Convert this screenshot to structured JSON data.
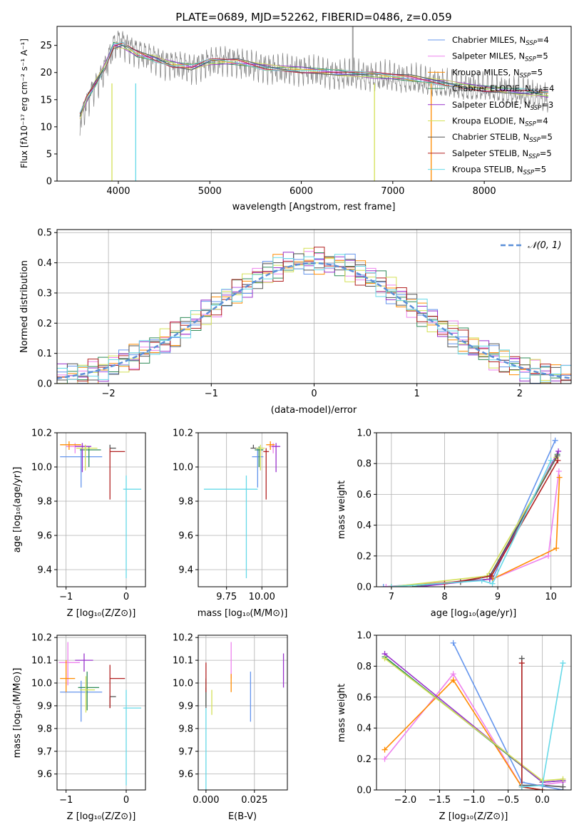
{
  "figure": {
    "title": "PLATE=0689, MJD=52262, FIBERID=0486, z=0.059"
  },
  "chart_data": [
    {
      "id": "spectrum",
      "type": "line",
      "xlabel": "wavelength [Angstrom, rest frame]",
      "ylabel": "Flux [fλ10⁻¹⁷ erg cm⁻² s⁻¹ A⁻¹]",
      "xlim": [
        3330,
        8950
      ],
      "ylim": [
        0,
        28.5
      ],
      "xticks": [
        4000,
        5000,
        6000,
        7000,
        8000
      ],
      "yticks": [
        0,
        5,
        10,
        15,
        20,
        25
      ],
      "legend_position": "top-right",
      "data_color": "#808080",
      "data_x": [
        3580,
        3650,
        3720,
        3800,
        3880,
        3950,
        4020,
        4100,
        4200,
        4350,
        4500,
        4650,
        4800,
        5000,
        5200,
        5400,
        5600,
        5800,
        6000,
        6200,
        6400,
        6600,
        6800,
        7000,
        7200,
        7400,
        7600,
        7800,
        8000,
        8200,
        8400,
        8600,
        8700
      ],
      "data_y": [
        11,
        14,
        17,
        19,
        22,
        25,
        26,
        25,
        24,
        23,
        22,
        21.5,
        21,
        22,
        22.5,
        21.5,
        21,
        20.5,
        20.5,
        20,
        19.5,
        19.5,
        19,
        19,
        18.5,
        18,
        17.5,
        17,
        17,
        16.5,
        16,
        15.5,
        15
      ],
      "series": [
        {
          "name": "Chabrier MILES, N_SSP=4",
          "color": "#6495ed"
        },
        {
          "name": "Salpeter MILES, N_SSP=5",
          "color": "#ee82ee"
        },
        {
          "name": "Kroupa MILES, N_SSP=5",
          "color": "#ff8c00"
        },
        {
          "name": "Chabrier ELODIE, N_SSP=4",
          "color": "#2e8b57"
        },
        {
          "name": "Salpeter ELODIE, N_SSP=3",
          "color": "#9932cc"
        },
        {
          "name": "Kroupa ELODIE, N_SSP=4",
          "color": "#d4e157"
        },
        {
          "name": "Chabrier STELIB, N_SSP=5",
          "color": "#555555"
        },
        {
          "name": "Salpeter STELIB, N_SSP=5",
          "color": "#b22222"
        },
        {
          "name": "Kroupa STELIB, N_SSP=5",
          "color": "#66d9e8"
        }
      ],
      "model_x": [
        3580,
        3650,
        3750,
        3850,
        3950,
        4050,
        4200,
        4400,
        4600,
        4800,
        5000,
        5300,
        5600,
        6000,
        6400,
        6800,
        7200,
        7600,
        8000,
        8400,
        8700
      ],
      "model_y": [
        12,
        15,
        18,
        21,
        25,
        25,
        23.5,
        22.5,
        21.5,
        21,
        22,
        22,
        21,
        20.5,
        20,
        19.5,
        19,
        18,
        17,
        16.5,
        16
      ]
    },
    {
      "id": "residual-histogram",
      "type": "histogram",
      "xlabel": "(data-model)/error",
      "ylabel": "Normed distribution",
      "xlim": [
        -2.5,
        2.5
      ],
      "ylim": [
        0,
        0.51
      ],
      "xticks": [
        -2,
        -1,
        0,
        1,
        2
      ],
      "yticks": [
        0.0,
        0.1,
        0.2,
        0.3,
        0.4,
        0.5
      ],
      "legend_position": "top-right",
      "reference_curve": {
        "name": "𝒩(0, 1)",
        "color": "#5b8fd8",
        "style": "dashed"
      },
      "bin_width": 0.1,
      "bin_start": -2.5,
      "series_colors": [
        "#6495ed",
        "#ee82ee",
        "#ff8c00",
        "#2e8b57",
        "#9932cc",
        "#d4e157",
        "#555555",
        "#b22222",
        "#66d9e8"
      ]
    },
    {
      "id": "age-vs-Z",
      "type": "errorbar",
      "xlabel": "Z [log₁₀(Z/Z⊙)]",
      "ylabel": "age  [log₁₀(age/yr)]",
      "xlim": [
        -1.15,
        0.32
      ],
      "ylim": [
        9.3,
        10.2
      ],
      "xticks": [
        -1,
        0
      ],
      "yticks": [
        9.4,
        9.6,
        9.8,
        10.0,
        10.2
      ],
      "points": [
        {
          "color": "#6495ed",
          "x": -0.75,
          "y": 10.06,
          "xerr": [
            0.35,
            0.35
          ],
          "yerr": [
            0.18,
            0.05
          ]
        },
        {
          "color": "#ee82ee",
          "x": -0.85,
          "y": 10.12,
          "xerr": [
            0.15,
            0.2
          ],
          "yerr": [
            0.04,
            0.02
          ]
        },
        {
          "color": "#ff8c00",
          "x": -0.95,
          "y": 10.13,
          "xerr": [
            0.15,
            0.2
          ],
          "yerr": [
            0.03,
            0.02
          ]
        },
        {
          "color": "#2e8b57",
          "x": -0.62,
          "y": 10.1,
          "xerr": [
            0.15,
            0.2
          ],
          "yerr": [
            0.1,
            0.02
          ]
        },
        {
          "color": "#9932cc",
          "x": -0.73,
          "y": 10.12,
          "xerr": [
            0.12,
            0.15
          ],
          "yerr": [
            0.15,
            0.02
          ]
        },
        {
          "color": "#d4e157",
          "x": -0.68,
          "y": 10.11,
          "xerr": [
            0.15,
            0.2
          ],
          "yerr": [
            0.13,
            0.02
          ]
        },
        {
          "color": "#555555",
          "x": -0.27,
          "y": 10.11,
          "xerr": [
            0.0,
            0.1
          ],
          "yerr": [
            0.0,
            0.02
          ]
        },
        {
          "color": "#b22222",
          "x": -0.27,
          "y": 10.09,
          "xerr": [
            0.0,
            0.25
          ],
          "yerr": [
            0.28,
            0.02
          ]
        },
        {
          "color": "#66d9e8",
          "x": 0.0,
          "y": 9.87,
          "xerr": [
            0.05,
            0.25
          ],
          "yerr": [
            0.52,
            0.08
          ]
        }
      ]
    },
    {
      "id": "age-vs-mass",
      "type": "errorbar",
      "xlabel": "mass [log₁₀(M/M⊙)]",
      "xlim": [
        9.55,
        10.18
      ],
      "ylim": [
        9.3,
        10.2
      ],
      "xticks": [
        9.75,
        10.0
      ],
      "xtick_labels": [
        "9.75",
        "10.00"
      ],
      "yticks": [
        9.4,
        9.6,
        9.8,
        10.0,
        10.2
      ],
      "points": [
        {
          "color": "#6495ed",
          "x": 9.97,
          "y": 10.06,
          "xerr": [
            0.04,
            0.04
          ],
          "yerr": [
            0.18,
            0.05
          ]
        },
        {
          "color": "#ee82ee",
          "x": 10.08,
          "y": 10.12,
          "xerr": [
            0.03,
            0.04
          ],
          "yerr": [
            0.04,
            0.02
          ]
        },
        {
          "color": "#ff8c00",
          "x": 10.06,
          "y": 10.13,
          "xerr": [
            0.03,
            0.03
          ],
          "yerr": [
            0.03,
            0.02
          ]
        },
        {
          "color": "#2e8b57",
          "x": 9.98,
          "y": 10.1,
          "xerr": [
            0.03,
            0.03
          ],
          "yerr": [
            0.1,
            0.02
          ]
        },
        {
          "color": "#9932cc",
          "x": 10.1,
          "y": 10.12,
          "xerr": [
            0.03,
            0.03
          ],
          "yerr": [
            0.15,
            0.02
          ]
        },
        {
          "color": "#d4e157",
          "x": 9.99,
          "y": 10.11,
          "xerr": [
            0.03,
            0.03
          ],
          "yerr": [
            0.13,
            0.02
          ]
        },
        {
          "color": "#555555",
          "x": 9.94,
          "y": 10.11,
          "xerr": [
            0.02,
            0.02
          ],
          "yerr": [
            0.0,
            0.02
          ]
        },
        {
          "color": "#b22222",
          "x": 10.03,
          "y": 10.09,
          "xerr": [
            0.02,
            0.02
          ],
          "yerr": [
            0.28,
            0.02
          ]
        },
        {
          "color": "#66d9e8",
          "x": 9.89,
          "y": 9.87,
          "xerr": [
            0.3,
            0.08
          ],
          "yerr": [
            0.52,
            0.08
          ]
        }
      ]
    },
    {
      "id": "mass-weight-vs-age",
      "type": "line",
      "xlabel": "age  [log₁₀(age/yr)]",
      "ylabel": "mass weight",
      "xlim": [
        6.72,
        10.38
      ],
      "ylim": [
        0,
        1.0
      ],
      "xticks": [
        7,
        8,
        9,
        10
      ],
      "yticks": [
        0.0,
        0.2,
        0.4,
        0.6,
        0.8,
        1.0
      ],
      "series": [
        {
          "color": "#6495ed",
          "x": [
            6.85,
            8.9,
            10.08
          ],
          "y": [
            0.0,
            0.05,
            0.95
          ]
        },
        {
          "color": "#ee82ee",
          "x": [
            6.9,
            8.9,
            9.95,
            10.15
          ],
          "y": [
            0.0,
            0.05,
            0.2,
            0.75
          ]
        },
        {
          "color": "#ff8c00",
          "x": [
            7.0,
            8.9,
            10.1,
            10.16
          ],
          "y": [
            0.0,
            0.05,
            0.25,
            0.71
          ]
        },
        {
          "color": "#2e8b57",
          "x": [
            7.4,
            8.85,
            10.12
          ],
          "y": [
            0.0,
            0.05,
            0.86
          ]
        },
        {
          "color": "#9932cc",
          "x": [
            7.5,
            8.85,
            10.14
          ],
          "y": [
            0.0,
            0.05,
            0.88
          ]
        },
        {
          "color": "#d4e157",
          "x": [
            7.0,
            8.8,
            10.1
          ],
          "y": [
            0.0,
            0.07,
            0.84
          ]
        },
        {
          "color": "#555555",
          "x": [
            8.3,
            8.85,
            10.12
          ],
          "y": [
            0.03,
            0.07,
            0.85
          ]
        },
        {
          "color": "#b22222",
          "x": [
            8.0,
            8.88,
            10.13
          ],
          "y": [
            0.02,
            0.07,
            0.82
          ]
        },
        {
          "color": "#66d9e8",
          "x": [
            7.0,
            8.7,
            8.9,
            10.0
          ],
          "y": [
            0.0,
            0.04,
            0.02,
            0.82
          ]
        }
      ]
    },
    {
      "id": "mass-vs-Z",
      "type": "errorbar",
      "xlabel": "Z [log₁₀(Z/Z⊙)]",
      "ylabel": "mass [log₁₀(M/M⊙)]",
      "xlim": [
        -1.15,
        0.32
      ],
      "ylim": [
        9.53,
        10.21
      ],
      "xticks": [
        -1,
        0
      ],
      "yticks": [
        9.6,
        9.7,
        9.8,
        9.9,
        10.0,
        10.1,
        10.2
      ],
      "points": [
        {
          "color": "#6495ed",
          "x": -0.75,
          "y": 9.96,
          "xerr": [
            0.35,
            0.35
          ],
          "yerr": [
            0.13,
            0.05
          ]
        },
        {
          "color": "#ee82ee",
          "x": -0.97,
          "y": 10.09,
          "xerr": [
            0.15,
            0.2
          ],
          "yerr": [
            0.1,
            0.09
          ]
        },
        {
          "color": "#ff8c00",
          "x": -1.0,
          "y": 10.02,
          "xerr": [
            0.1,
            0.15
          ],
          "yerr": [
            0.06,
            0.08
          ]
        },
        {
          "color": "#2e8b57",
          "x": -0.65,
          "y": 9.98,
          "xerr": [
            0.15,
            0.2
          ],
          "yerr": [
            0.1,
            0.07
          ]
        },
        {
          "color": "#9932cc",
          "x": -0.7,
          "y": 10.1,
          "xerr": [
            0.15,
            0.15
          ],
          "yerr": [
            0.05,
            0.03
          ]
        },
        {
          "color": "#d4e157",
          "x": -0.67,
          "y": 9.97,
          "xerr": [
            0.1,
            0.15
          ],
          "yerr": [
            0.1,
            0.06
          ]
        },
        {
          "color": "#555555",
          "x": -0.27,
          "y": 9.94,
          "xerr": [
            0.0,
            0.1
          ],
          "yerr": [
            0.05,
            0.0
          ]
        },
        {
          "color": "#b22222",
          "x": -0.27,
          "y": 10.02,
          "xerr": [
            0.0,
            0.25
          ],
          "yerr": [
            0.13,
            0.06
          ]
        },
        {
          "color": "#66d9e8",
          "x": 0.0,
          "y": 9.89,
          "xerr": [
            0.05,
            0.25
          ],
          "yerr": [
            0.34,
            0.08
          ]
        }
      ]
    },
    {
      "id": "mass-vs-ebv",
      "type": "errorbar",
      "xlabel": "E(B-V)",
      "xlim": [
        -0.004,
        0.042
      ],
      "ylim": [
        9.53,
        10.21
      ],
      "xticks": [
        0.0,
        0.025
      ],
      "xtick_labels": [
        "0.000",
        "0.025"
      ],
      "yticks": [
        9.6,
        9.7,
        9.8,
        9.9,
        10.0,
        10.1,
        10.2
      ],
      "points": [
        {
          "color": "#6495ed",
          "x": 0.023,
          "y": 9.96,
          "yerr": [
            0.13,
            0.09
          ]
        },
        {
          "color": "#ee82ee",
          "x": 0.013,
          "y": 10.09,
          "yerr": [
            0.07,
            0.09
          ]
        },
        {
          "color": "#ff8c00",
          "x": 0.013,
          "y": 10.0,
          "yerr": [
            0.04,
            0.04
          ]
        },
        {
          "color": "#2e8b57",
          "x": 0.0,
          "y": 9.98,
          "yerr": [
            0.08,
            0.04
          ]
        },
        {
          "color": "#9932cc",
          "x": 0.04,
          "y": 10.05,
          "yerr": [
            0.07,
            0.08
          ]
        },
        {
          "color": "#d4e157",
          "x": 0.003,
          "y": 9.93,
          "yerr": [
            0.07,
            0.04
          ]
        },
        {
          "color": "#555555",
          "x": 0.0,
          "y": 9.94,
          "yerr": [
            0.05,
            0.04
          ]
        },
        {
          "color": "#b22222",
          "x": 0.0,
          "y": 10.02,
          "yerr": [
            0.06,
            0.07
          ]
        },
        {
          "color": "#66d9e8",
          "x": 0.0,
          "y": 9.75,
          "yerr": [
            0.22,
            0.14
          ]
        }
      ]
    },
    {
      "id": "mass-weight-vs-Z",
      "type": "line",
      "xlabel": "Z [log₁₀(Z/Z⊙)]",
      "ylabel": "mass weight",
      "xlim": [
        -2.42,
        0.42
      ],
      "ylim": [
        0,
        1.0
      ],
      "xticks": [
        -2.0,
        -1.5,
        -1.0,
        -0.5,
        0.0
      ],
      "yticks": [
        0.0,
        0.2,
        0.4,
        0.6,
        0.8,
        1.0
      ],
      "series": [
        {
          "color": "#6495ed",
          "x": [
            -1.3,
            -0.3,
            0.3
          ],
          "y": [
            0.95,
            0.05,
            0.0
          ]
        },
        {
          "color": "#ee82ee",
          "x": [
            -2.3,
            -1.3,
            -0.3,
            0.3
          ],
          "y": [
            0.2,
            0.75,
            0.02,
            0.05
          ]
        },
        {
          "color": "#ff8c00",
          "x": [
            -2.3,
            -1.3,
            -0.3,
            0.0
          ],
          "y": [
            0.26,
            0.71,
            0.02,
            0.0
          ]
        },
        {
          "color": "#2e8b57",
          "x": [
            -2.3,
            0.0,
            0.3
          ],
          "y": [
            0.86,
            0.05,
            0.06
          ]
        },
        {
          "color": "#9932cc",
          "x": [
            -2.3,
            0.0,
            0.3
          ],
          "y": [
            0.88,
            0.05,
            0.06
          ]
        },
        {
          "color": "#d4e157",
          "x": [
            -2.3,
            0.0,
            0.3
          ],
          "y": [
            0.85,
            0.06,
            0.07
          ]
        },
        {
          "color": "#555555",
          "x": [
            -0.3,
            -0.3,
            0.0,
            0.3
          ],
          "y": [
            0.85,
            0.03,
            0.03,
            0.02
          ]
        },
        {
          "color": "#b22222",
          "x": [
            -0.3,
            -0.3,
            0.0
          ],
          "y": [
            0.82,
            0.02,
            0.0
          ]
        },
        {
          "color": "#66d9e8",
          "x": [
            -0.3,
            0.0,
            0.3
          ],
          "y": [
            0.02,
            0.03,
            0.82
          ]
        }
      ]
    }
  ]
}
